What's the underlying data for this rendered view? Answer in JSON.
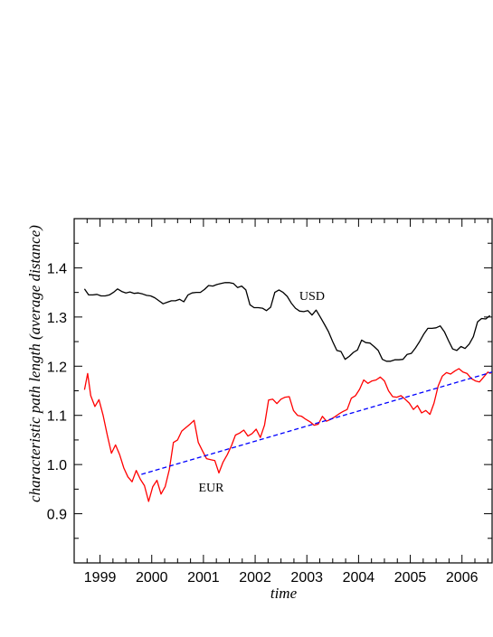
{
  "chart_data": {
    "type": "line",
    "xlabel": "time",
    "ylabel": "characteristic path length  (average distance)",
    "xlim": [
      1998.5,
      2006.6
    ],
    "ylim": [
      0.8,
      1.5
    ],
    "x_ticks": [
      {
        "value": 1999,
        "label": "1999"
      },
      {
        "value": 2000,
        "label": "2000"
      },
      {
        "value": 2001,
        "label": "2001"
      },
      {
        "value": 2002,
        "label": "2002"
      },
      {
        "value": 2003,
        "label": "2003"
      },
      {
        "value": 2004,
        "label": "2004"
      },
      {
        "value": 2005,
        "label": "2005"
      },
      {
        "value": 2006,
        "label": "2006"
      }
    ],
    "y_ticks": [
      {
        "value": 0.9,
        "label": "0.9"
      },
      {
        "value": 1.0,
        "label": "1.0"
      },
      {
        "value": 1.1,
        "label": "1.1"
      },
      {
        "value": 1.2,
        "label": "1.2"
      },
      {
        "value": 1.3,
        "label": "1.3"
      },
      {
        "value": 1.4,
        "label": "1.4"
      }
    ],
    "grid": false,
    "series": [
      {
        "name": "USD",
        "color": "#000000",
        "style": "solid",
        "label_at": [
          2003.1,
          1.335
        ],
        "points": [
          [
            1998.7,
            1.357
          ],
          [
            1998.78,
            1.345
          ],
          [
            1998.86,
            1.345
          ],
          [
            1998.94,
            1.346
          ],
          [
            1999.02,
            1.343
          ],
          [
            1999.1,
            1.343
          ],
          [
            1999.18,
            1.345
          ],
          [
            1999.26,
            1.35
          ],
          [
            1999.34,
            1.357
          ],
          [
            1999.42,
            1.352
          ],
          [
            1999.5,
            1.349
          ],
          [
            1999.58,
            1.351
          ],
          [
            1999.66,
            1.348
          ],
          [
            1999.74,
            1.349
          ],
          [
            1999.82,
            1.347
          ],
          [
            1999.9,
            1.344
          ],
          [
            1999.98,
            1.343
          ],
          [
            2000.06,
            1.339
          ],
          [
            2000.14,
            1.333
          ],
          [
            2000.22,
            1.327
          ],
          [
            2000.3,
            1.33
          ],
          [
            2000.38,
            1.333
          ],
          [
            2000.46,
            1.333
          ],
          [
            2000.54,
            1.336
          ],
          [
            2000.62,
            1.331
          ],
          [
            2000.7,
            1.345
          ],
          [
            2000.78,
            1.349
          ],
          [
            2000.86,
            1.35
          ],
          [
            2000.94,
            1.35
          ],
          [
            2001.02,
            1.356
          ],
          [
            2001.1,
            1.364
          ],
          [
            2001.18,
            1.363
          ],
          [
            2001.26,
            1.366
          ],
          [
            2001.34,
            1.368
          ],
          [
            2001.42,
            1.37
          ],
          [
            2001.5,
            1.37
          ],
          [
            2001.58,
            1.368
          ],
          [
            2001.66,
            1.36
          ],
          [
            2001.74,
            1.363
          ],
          [
            2001.82,
            1.355
          ],
          [
            2001.9,
            1.325
          ],
          [
            2001.98,
            1.319
          ],
          [
            2002.06,
            1.319
          ],
          [
            2002.14,
            1.318
          ],
          [
            2002.22,
            1.313
          ],
          [
            2002.3,
            1.32
          ],
          [
            2002.38,
            1.35
          ],
          [
            2002.46,
            1.355
          ],
          [
            2002.54,
            1.35
          ],
          [
            2002.62,
            1.342
          ],
          [
            2002.7,
            1.328
          ],
          [
            2002.78,
            1.318
          ],
          [
            2002.86,
            1.312
          ],
          [
            2002.94,
            1.311
          ],
          [
            2003.02,
            1.313
          ],
          [
            2003.1,
            1.304
          ],
          [
            2003.18,
            1.314
          ],
          [
            2003.26,
            1.3
          ],
          [
            2003.34,
            1.285
          ],
          [
            2003.42,
            1.27
          ],
          [
            2003.5,
            1.25
          ],
          [
            2003.58,
            1.232
          ],
          [
            2003.66,
            1.23
          ],
          [
            2003.74,
            1.214
          ],
          [
            2003.82,
            1.22
          ],
          [
            2003.9,
            1.228
          ],
          [
            2003.98,
            1.233
          ],
          [
            2004.06,
            1.253
          ],
          [
            2004.14,
            1.248
          ],
          [
            2004.22,
            1.247
          ],
          [
            2004.3,
            1.24
          ],
          [
            2004.38,
            1.232
          ],
          [
            2004.46,
            1.214
          ],
          [
            2004.54,
            1.21
          ],
          [
            2004.62,
            1.21
          ],
          [
            2004.7,
            1.213
          ],
          [
            2004.78,
            1.213
          ],
          [
            2004.86,
            1.214
          ],
          [
            2004.94,
            1.224
          ],
          [
            2005.02,
            1.226
          ],
          [
            2005.1,
            1.237
          ],
          [
            2005.18,
            1.25
          ],
          [
            2005.26,
            1.265
          ],
          [
            2005.34,
            1.277
          ],
          [
            2005.42,
            1.277
          ],
          [
            2005.5,
            1.278
          ],
          [
            2005.58,
            1.282
          ],
          [
            2005.66,
            1.27
          ],
          [
            2005.74,
            1.252
          ],
          [
            2005.82,
            1.235
          ],
          [
            2005.9,
            1.232
          ],
          [
            2005.98,
            1.24
          ],
          [
            2006.06,
            1.236
          ],
          [
            2006.14,
            1.245
          ],
          [
            2006.22,
            1.26
          ],
          [
            2006.3,
            1.29
          ],
          [
            2006.38,
            1.297
          ],
          [
            2006.46,
            1.296
          ],
          [
            2006.54,
            1.303
          ]
        ]
      },
      {
        "name": "EUR",
        "color": "#ff0000",
        "style": "solid",
        "label_at": [
          2001.15,
          0.945
        ],
        "points": [
          [
            1998.7,
            1.152
          ],
          [
            1998.76,
            1.185
          ],
          [
            1998.82,
            1.14
          ],
          [
            1998.9,
            1.118
          ],
          [
            1998.98,
            1.132
          ],
          [
            1999.06,
            1.1
          ],
          [
            1999.14,
            1.06
          ],
          [
            1999.22,
            1.023
          ],
          [
            1999.3,
            1.04
          ],
          [
            1999.38,
            1.02
          ],
          [
            1999.46,
            0.993
          ],
          [
            1999.54,
            0.975
          ],
          [
            1999.62,
            0.965
          ],
          [
            1999.7,
            0.988
          ],
          [
            1999.78,
            0.97
          ],
          [
            1999.86,
            0.957
          ],
          [
            1999.94,
            0.925
          ],
          [
            2000.02,
            0.955
          ],
          [
            2000.1,
            0.968
          ],
          [
            2000.18,
            0.94
          ],
          [
            2000.26,
            0.955
          ],
          [
            2000.34,
            0.99
          ],
          [
            2000.42,
            1.045
          ],
          [
            2000.5,
            1.05
          ],
          [
            2000.58,
            1.068
          ],
          [
            2000.66,
            1.075
          ],
          [
            2000.74,
            1.082
          ],
          [
            2000.82,
            1.09
          ],
          [
            2000.9,
            1.045
          ],
          [
            2000.98,
            1.028
          ],
          [
            2001.06,
            1.012
          ],
          [
            2001.14,
            1.01
          ],
          [
            2001.22,
            1.008
          ],
          [
            2001.3,
            0.983
          ],
          [
            2001.38,
            1.005
          ],
          [
            2001.46,
            1.02
          ],
          [
            2001.54,
            1.038
          ],
          [
            2001.62,
            1.06
          ],
          [
            2001.7,
            1.064
          ],
          [
            2001.78,
            1.07
          ],
          [
            2001.86,
            1.058
          ],
          [
            2001.94,
            1.063
          ],
          [
            2002.02,
            1.072
          ],
          [
            2002.1,
            1.055
          ],
          [
            2002.18,
            1.08
          ],
          [
            2002.26,
            1.131
          ],
          [
            2002.34,
            1.133
          ],
          [
            2002.42,
            1.124
          ],
          [
            2002.5,
            1.133
          ],
          [
            2002.58,
            1.137
          ],
          [
            2002.66,
            1.138
          ],
          [
            2002.74,
            1.11
          ],
          [
            2002.82,
            1.1
          ],
          [
            2002.9,
            1.098
          ],
          [
            2002.98,
            1.092
          ],
          [
            2003.06,
            1.087
          ],
          [
            2003.14,
            1.08
          ],
          [
            2003.22,
            1.082
          ],
          [
            2003.3,
            1.098
          ],
          [
            2003.38,
            1.088
          ],
          [
            2003.46,
            1.092
          ],
          [
            2003.54,
            1.097
          ],
          [
            2003.62,
            1.103
          ],
          [
            2003.7,
            1.108
          ],
          [
            2003.78,
            1.112
          ],
          [
            2003.86,
            1.135
          ],
          [
            2003.94,
            1.14
          ],
          [
            2004.02,
            1.153
          ],
          [
            2004.1,
            1.172
          ],
          [
            2004.18,
            1.165
          ],
          [
            2004.26,
            1.17
          ],
          [
            2004.34,
            1.172
          ],
          [
            2004.42,
            1.178
          ],
          [
            2004.5,
            1.17
          ],
          [
            2004.58,
            1.15
          ],
          [
            2004.66,
            1.138
          ],
          [
            2004.74,
            1.137
          ],
          [
            2004.82,
            1.14
          ],
          [
            2004.9,
            1.133
          ],
          [
            2004.98,
            1.125
          ],
          [
            2005.06,
            1.112
          ],
          [
            2005.14,
            1.12
          ],
          [
            2005.22,
            1.105
          ],
          [
            2005.3,
            1.11
          ],
          [
            2005.38,
            1.102
          ],
          [
            2005.46,
            1.125
          ],
          [
            2005.54,
            1.16
          ],
          [
            2005.62,
            1.18
          ],
          [
            2005.7,
            1.187
          ],
          [
            2005.78,
            1.184
          ],
          [
            2005.86,
            1.19
          ],
          [
            2005.94,
            1.195
          ],
          [
            2006.02,
            1.188
          ],
          [
            2006.1,
            1.185
          ],
          [
            2006.18,
            1.175
          ],
          [
            2006.26,
            1.17
          ],
          [
            2006.34,
            1.168
          ],
          [
            2006.42,
            1.178
          ],
          [
            2006.5,
            1.188
          ],
          [
            2006.56,
            1.185
          ]
        ]
      },
      {
        "name": "",
        "color": "#0000ff",
        "style": "dashed",
        "points": [
          [
            1999.8,
            0.98
          ],
          [
            2006.58,
            1.188
          ]
        ]
      }
    ]
  }
}
